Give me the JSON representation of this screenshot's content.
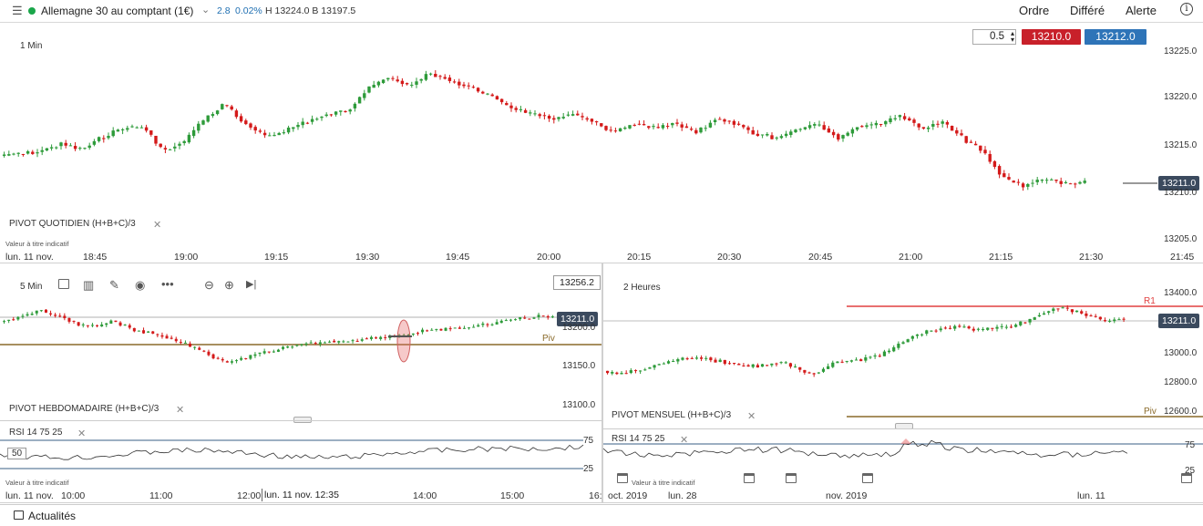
{
  "topbar": {
    "instrument": "Allemagne 30 au comptant (1€)",
    "change": "2.8",
    "change_pct": "0.02%",
    "high_low": "H 13224.0  B 13197.5",
    "menu_order": "Ordre",
    "menu_delayed": "Différé",
    "menu_alert": "Alerte",
    "info_icon": "i"
  },
  "main_chart": {
    "timeframe": "1 Min",
    "lot_size": "0.5",
    "sell_price": "13210.0",
    "buy_price": "13212.0",
    "current_price": "13211.0",
    "pivot_label": "PIVOT  QUOTIDIEN  (H+B+C)/3",
    "disclaimer": "Valeur à titre indicatif",
    "date_label": "lun. 11 nov.",
    "y_ticks": [
      "13225.0",
      "13220.0",
      "13215.0",
      "13210.0",
      "13205.0"
    ],
    "x_ticks": [
      "18:45",
      "19:00",
      "19:15",
      "19:30",
      "19:45",
      "20:00",
      "20:15",
      "20:30",
      "20:45",
      "21:00",
      "21:15",
      "21:30",
      "21:45"
    ]
  },
  "left_chart": {
    "timeframe": "5 Min",
    "top_price": "13256.2",
    "current_price": "13211.0",
    "piv_label": "Piv",
    "pivot_label": "PIVOT  HEBDOMADAIRE  (H+B+C)/3",
    "y_ticks": [
      "13200.0",
      "13150.0",
      "13100.0"
    ],
    "rsi_label": "RSI  14  75  25",
    "rsi_levels": [
      "75",
      "50",
      "25"
    ],
    "disclaimer": "Valeur à titre indicatif",
    "date_label": "lun. 11 nov.",
    "crosshair_label": "lun. 11 nov. 12:35",
    "x_ticks": [
      "10:00",
      "11:00",
      "12:00",
      "14:00",
      "15:00",
      "16:"
    ]
  },
  "right_chart": {
    "timeframe": "2 Heures",
    "r1_label": "R1",
    "piv_label": "Piv",
    "current_price": "13211.0",
    "pivot_label": "PIVOT  MENSUEL  (H+B+C)/3",
    "y_ticks": [
      "13400.0",
      "13000.0",
      "12800.0",
      "12600.0"
    ],
    "rsi_label": "RSI  14  75  25",
    "rsi_levels": [
      "75",
      "25"
    ],
    "disclaimer": "Valeur à titre indicatif",
    "x_ticks": [
      "oct. 2019",
      "lun. 28",
      "nov. 2019",
      "lun. 11"
    ]
  },
  "footer": {
    "news_label": "Actualités"
  },
  "colors": {
    "up": "#2e9b3a",
    "down": "#d41a1a",
    "sell": "#c8202a",
    "buy": "#2e74b8",
    "tag": "#3b4a5e",
    "pivot": "#8a6a2a",
    "r1": "#e04040"
  },
  "icons": [
    "menu-icon",
    "status-dot-icon",
    "chevron-down-icon",
    "info-icon",
    "calendar-icon",
    "bar-chart-icon",
    "pencil-icon",
    "eye-icon",
    "more-icon",
    "zoom-out-icon",
    "zoom-in-icon",
    "play-icon",
    "close-icon",
    "news-icon"
  ]
}
